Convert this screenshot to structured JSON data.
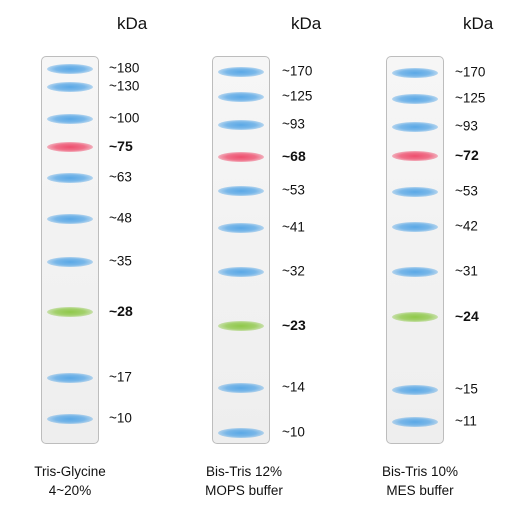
{
  "colors": {
    "blue": "#5aa8e6",
    "red": "#ee4f6e",
    "green": "#8fc84a"
  },
  "ladders": [
    {
      "unit": "kDa",
      "caption_line1": "Tris-Glycine",
      "caption_line2": "4~20%",
      "bands": [
        {
          "label": "~180",
          "kda": 180,
          "color": "blue",
          "bold": false
        },
        {
          "label": "~130",
          "kda": 130,
          "color": "blue",
          "bold": false
        },
        {
          "label": "~100",
          "kda": 100,
          "color": "blue",
          "bold": false
        },
        {
          "label": "~75",
          "kda": 75,
          "color": "red",
          "bold": true
        },
        {
          "label": "~63",
          "kda": 63,
          "color": "blue",
          "bold": false
        },
        {
          "label": "~48",
          "kda": 48,
          "color": "blue",
          "bold": false
        },
        {
          "label": "~35",
          "kda": 35,
          "color": "blue",
          "bold": false
        },
        {
          "label": "~28",
          "kda": 28,
          "color": "green",
          "bold": true
        },
        {
          "label": "~17",
          "kda": 17,
          "color": "blue",
          "bold": false
        },
        {
          "label": "~10",
          "kda": 10,
          "color": "blue",
          "bold": false
        }
      ]
    },
    {
      "unit": "kDa",
      "caption_line1": "Bis-Tris 12%",
      "caption_line2": "MOPS buffer",
      "bands": [
        {
          "label": "~170",
          "kda": 170,
          "color": "blue",
          "bold": false
        },
        {
          "label": "~125",
          "kda": 125,
          "color": "blue",
          "bold": false
        },
        {
          "label": "~93",
          "kda": 93,
          "color": "blue",
          "bold": false
        },
        {
          "label": "~68",
          "kda": 68,
          "color": "red",
          "bold": true
        },
        {
          "label": "~53",
          "kda": 53,
          "color": "blue",
          "bold": false
        },
        {
          "label": "~41",
          "kda": 41,
          "color": "blue",
          "bold": false
        },
        {
          "label": "~32",
          "kda": 32,
          "color": "blue",
          "bold": false
        },
        {
          "label": "~23",
          "kda": 23,
          "color": "green",
          "bold": true
        },
        {
          "label": "~14",
          "kda": 14,
          "color": "blue",
          "bold": false
        },
        {
          "label": "~10",
          "kda": 10,
          "color": "blue",
          "bold": false
        }
      ]
    },
    {
      "unit": "kDa",
      "caption_line1": "Bis-Tris 10%",
      "caption_line2": "MES buffer",
      "bands": [
        {
          "label": "~170",
          "kda": 170,
          "color": "blue",
          "bold": false
        },
        {
          "label": "~125",
          "kda": 125,
          "color": "blue",
          "bold": false
        },
        {
          "label": "~93",
          "kda": 93,
          "color": "blue",
          "bold": false
        },
        {
          "label": "~72",
          "kda": 72,
          "color": "red",
          "bold": true
        },
        {
          "label": "~53",
          "kda": 53,
          "color": "blue",
          "bold": false
        },
        {
          "label": "~42",
          "kda": 42,
          "color": "blue",
          "bold": false
        },
        {
          "label": "~31",
          "kda": 31,
          "color": "blue",
          "bold": false
        },
        {
          "label": "~24",
          "kda": 24,
          "color": "green",
          "bold": true
        },
        {
          "label": "~15",
          "kda": 15,
          "color": "blue",
          "bold": false
        },
        {
          "label": "~11",
          "kda": 11,
          "color": "blue",
          "bold": false
        }
      ]
    }
  ]
}
